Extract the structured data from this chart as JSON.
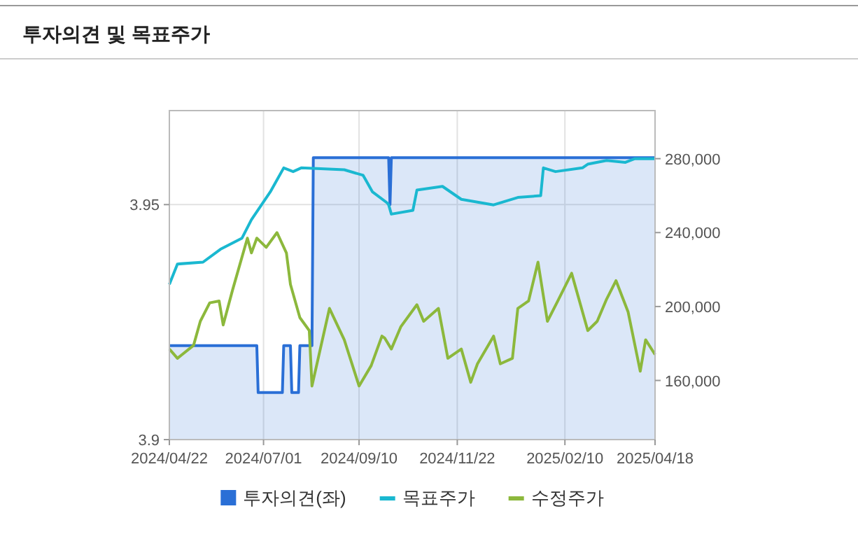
{
  "chart_data": {
    "type": "line",
    "title": "투자의견 및 목표주가",
    "xlim": [
      "2024-04-22",
      "2025-04-18"
    ],
    "xticks": [
      {
        "value": "2024-04-22",
        "label": "2024/04/22"
      },
      {
        "value": "2024-07-01",
        "label": "2024/07/01"
      },
      {
        "value": "2024-09-10",
        "label": "2024/09/10"
      },
      {
        "value": "2024-11-22",
        "label": "2024/11/22"
      },
      {
        "value": "2025-02-10",
        "label": "2025/02/10"
      },
      {
        "value": "2025-04-18",
        "label": "2025/04/18"
      }
    ],
    "ylim": [
      3.9,
      3.97
    ],
    "yticks": [
      3.9,
      3.95
    ],
    "y2lim": [
      128000,
      306000
    ],
    "y2ticks": [
      {
        "value": 160000,
        "label": "160,000"
      },
      {
        "value": 200000,
        "label": "200,000"
      },
      {
        "value": 240000,
        "label": "240,000"
      },
      {
        "value": 280000,
        "label": "280,000"
      }
    ],
    "grid": true,
    "legend": "bottom",
    "series": [
      {
        "name": "투자의견(좌)",
        "type": "area",
        "color": "#2a6fd6",
        "x": [
          "2024-04-22",
          "2024-06-26",
          "2024-06-27",
          "2024-07-15",
          "2024-07-16",
          "2024-07-21",
          "2024-07-22",
          "2024-07-27",
          "2024-07-28",
          "2024-08-06",
          "2024-08-07",
          "2024-10-02",
          "2024-10-03",
          "2024-10-04",
          "2025-04-18"
        ],
        "values": [
          3.92,
          3.92,
          3.91,
          3.91,
          3.92,
          3.92,
          3.91,
          3.91,
          3.92,
          3.92,
          3.96,
          3.96,
          3.95,
          3.96,
          3.96
        ]
      },
      {
        "name": "목표주가",
        "axis": "y2",
        "color": "#1ab8d0",
        "x": [
          "2024-04-22",
          "2024-04-28",
          "2024-05-17",
          "2024-05-30",
          "2024-06-15",
          "2024-06-22",
          "2024-07-06",
          "2024-07-16",
          "2024-07-23",
          "2024-07-29",
          "2024-08-30",
          "2024-09-13",
          "2024-09-20",
          "2024-10-01",
          "2024-10-02",
          "2024-10-04",
          "2024-10-20",
          "2024-10-23",
          "2024-11-11",
          "2024-11-25",
          "2024-12-19",
          "2025-01-06",
          "2025-01-23",
          "2025-01-25",
          "2025-02-03",
          "2025-02-23",
          "2025-02-27",
          "2025-03-13",
          "2025-03-27",
          "2025-04-03",
          "2025-04-18"
        ],
        "values": [
          212000,
          223000,
          224000,
          231000,
          237000,
          247000,
          262000,
          275000,
          273000,
          275000,
          274000,
          271000,
          262000,
          256000,
          255000,
          250000,
          252000,
          263000,
          265000,
          258000,
          255000,
          259000,
          260000,
          275000,
          273000,
          275000,
          277000,
          279000,
          278000,
          280000,
          280000
        ]
      },
      {
        "name": "수정주가",
        "axis": "y2",
        "color": "#8cb83c",
        "x": [
          "2024-04-22",
          "2024-04-28",
          "2024-05-10",
          "2024-05-15",
          "2024-05-22",
          "2024-05-29",
          "2024-06-01",
          "2024-06-08",
          "2024-06-19",
          "2024-06-22",
          "2024-06-26",
          "2024-07-03",
          "2024-07-11",
          "2024-07-18",
          "2024-07-21",
          "2024-07-28",
          "2024-08-04",
          "2024-08-06",
          "2024-08-19",
          "2024-08-30",
          "2024-09-10",
          "2024-09-19",
          "2024-09-27",
          "2024-09-29",
          "2024-10-04",
          "2024-10-11",
          "2024-10-23",
          "2024-10-28",
          "2024-11-08",
          "2024-11-15",
          "2024-11-25",
          "2024-12-02",
          "2024-12-07",
          "2024-12-19",
          "2024-12-24",
          "2025-01-02",
          "2025-01-06",
          "2025-01-14",
          "2025-01-21",
          "2025-01-28",
          "2025-02-04",
          "2025-02-15",
          "2025-02-27",
          "2025-03-06",
          "2025-03-13",
          "2025-03-20",
          "2025-03-29",
          "2025-04-07",
          "2025-04-11",
          "2025-04-18"
        ],
        "values": [
          177000,
          172000,
          179000,
          192000,
          202000,
          203000,
          190000,
          209000,
          237000,
          229000,
          237000,
          232000,
          240000,
          229000,
          212000,
          194000,
          187000,
          157000,
          199000,
          182000,
          157000,
          168000,
          184000,
          183000,
          177000,
          189000,
          201000,
          192000,
          199000,
          172000,
          177000,
          159000,
          169000,
          184000,
          169000,
          172000,
          199000,
          203000,
          224000,
          192000,
          202000,
          218000,
          187000,
          192000,
          204000,
          214000,
          197000,
          165000,
          182000,
          174000
        ]
      }
    ]
  }
}
